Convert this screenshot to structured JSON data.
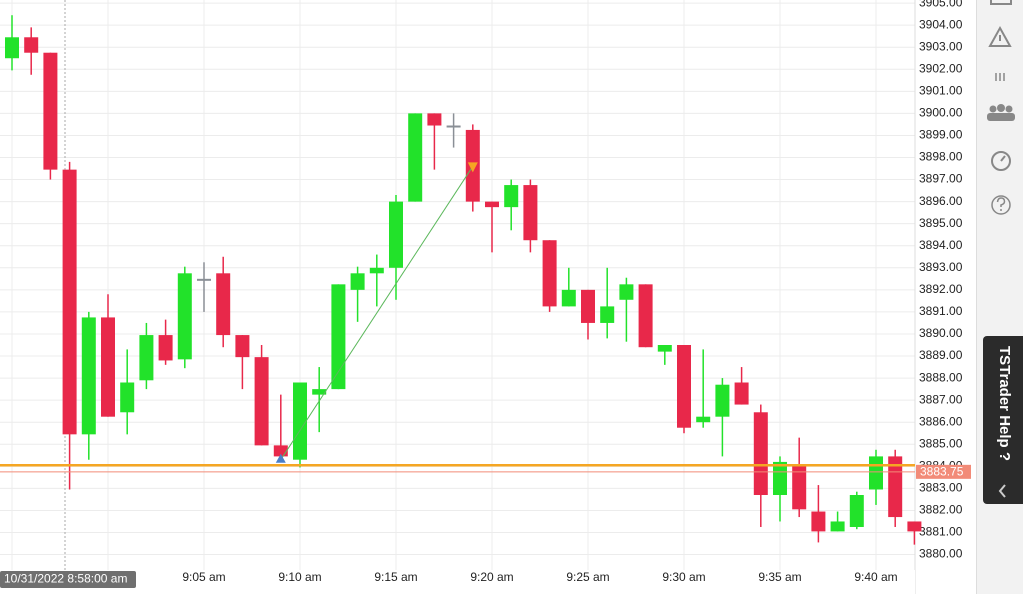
{
  "chart_data": {
    "type": "candlestick",
    "categories": [
      null,
      null,
      null,
      null,
      null,
      null,
      null,
      null,
      null,
      null,
      "9:05 am",
      null,
      null,
      null,
      null,
      "9:10 am",
      null,
      null,
      null,
      null,
      "9:15 am",
      null,
      null,
      null,
      null,
      "9:20 am",
      null,
      null,
      null,
      null,
      "9:25 am",
      null,
      null,
      null,
      null,
      "9:30 am",
      null,
      null,
      null,
      null,
      "9:35 am",
      null,
      null,
      null,
      null,
      "9:40 am",
      null,
      null
    ],
    "open": [
      3902.5,
      3903.45,
      3902.75,
      3897.45,
      3885.45,
      3890.75,
      3886.45,
      3887.9,
      3889.95,
      3888.85,
      3892.5,
      3892.75,
      3889.95,
      3888.95,
      3884.95,
      3884.3,
      3887.25,
      3887.5,
      3892.0,
      3892.75,
      3893.0,
      3896.0,
      3900.0,
      3899.45,
      3899.25,
      3896.0,
      3895.75,
      3896.75,
      3894.25,
      3891.25,
      3892.0,
      3890.5,
      3891.55,
      3892.25,
      3889.2,
      3889.5,
      3886.0,
      3886.25,
      3887.8,
      3886.45,
      3882.7,
      3884.1,
      3881.95,
      3881.05,
      3881.25,
      3882.95,
      3884.45,
      3881.5
    ],
    "high": [
      3904.45,
      3903.9,
      3902.75,
      3897.8,
      3891.0,
      3891.8,
      3889.3,
      3890.5,
      3890.65,
      3893.05,
      3893.25,
      3893.5,
      3889.95,
      3889.5,
      3887.25,
      3887.8,
      3888.5,
      3892.25,
      3893.05,
      3893.6,
      3896.3,
      3900.0,
      3900.0,
      3900.0,
      3899.5,
      3896.0,
      3897.0,
      3897.0,
      3894.25,
      3893.0,
      3892.0,
      3893.0,
      3892.55,
      3892.25,
      3889.5,
      3889.5,
      3889.3,
      3888.0,
      3888.5,
      3886.8,
      3884.45,
      3885.3,
      3883.15,
      3881.95,
      3882.85,
      3884.75,
      3884.75,
      3881.5
    ],
    "low": [
      3901.95,
      3901.75,
      3897.0,
      3882.95,
      3884.3,
      3886.25,
      3885.45,
      3887.5,
      3888.6,
      3888.45,
      3891.0,
      3889.4,
      3887.5,
      3884.95,
      3884.3,
      3883.95,
      3885.55,
      3887.5,
      3890.55,
      3891.25,
      3891.55,
      3896.0,
      3897.45,
      3898.45,
      3895.55,
      3893.7,
      3894.7,
      3893.7,
      3891.0,
      3891.25,
      3889.75,
      3889.8,
      3889.65,
      3889.4,
      3888.6,
      3885.5,
      3885.75,
      3884.45,
      3886.8,
      3881.25,
      3881.5,
      3881.7,
      3880.55,
      3881.05,
      3881.15,
      3882.25,
      3881.25,
      3880.45
    ],
    "close": [
      3903.45,
      3902.75,
      3897.45,
      3885.45,
      3890.75,
      3886.25,
      3887.8,
      3889.95,
      3888.8,
      3892.75,
      3892.5,
      3889.95,
      3888.95,
      3884.95,
      3884.45,
      3887.8,
      3887.5,
      3892.25,
      3892.75,
      3893.0,
      3896.0,
      3900.0,
      3899.45,
      3899.45,
      3896.0,
      3895.75,
      3896.75,
      3894.25,
      3891.25,
      3892.0,
      3890.5,
      3891.25,
      3892.25,
      3889.4,
      3889.5,
      3885.75,
      3886.25,
      3887.7,
      3886.8,
      3882.7,
      3884.2,
      3882.05,
      3881.05,
      3881.5,
      3882.7,
      3884.45,
      3881.7,
      3881.05
    ],
    "up_color": "#22e22a",
    "down_color": "#e8284a",
    "doji_color": "#8a8f96",
    "ylim": [
      3879.3,
      3905.14
    ],
    "yticks": [
      {
        "value": 3880,
        "label": "3880.00"
      },
      {
        "value": 3881,
        "label": "3881.00"
      },
      {
        "value": 3882,
        "label": "3882.00"
      },
      {
        "value": 3883,
        "label": "3883.00"
      },
      {
        "value": 3884,
        "label": "3884.00"
      },
      {
        "value": 3885,
        "label": "3885.00"
      },
      {
        "value": 3886,
        "label": "3886.00"
      },
      {
        "value": 3887,
        "label": "3887.00"
      },
      {
        "value": 3888,
        "label": "3888.00"
      },
      {
        "value": 3889,
        "label": "3889.00"
      },
      {
        "value": 3890,
        "label": "3890.00"
      },
      {
        "value": 3891,
        "label": "3891.00"
      },
      {
        "value": 3892,
        "label": "3892.00"
      },
      {
        "value": 3893,
        "label": "3893.00"
      },
      {
        "value": 3894,
        "label": "3894.00"
      },
      {
        "value": 3895,
        "label": "3895.00"
      },
      {
        "value": 3896,
        "label": "3896.00"
      },
      {
        "value": 3897,
        "label": "3897.00"
      },
      {
        "value": 3898,
        "label": "3898.00"
      },
      {
        "value": 3899,
        "label": "3899.00"
      },
      {
        "value": 3900,
        "label": "3900.00"
      },
      {
        "value": 3901,
        "label": "3901.00"
      },
      {
        "value": 3902,
        "label": "3902.00"
      },
      {
        "value": 3903,
        "label": "3903.00"
      },
      {
        "value": 3904,
        "label": "3904.00"
      },
      {
        "value": 3905,
        "label": "3905.00"
      }
    ],
    "grid": true,
    "price_line": {
      "value": 3884.05,
      "color": "#f5a623"
    },
    "last_price": {
      "value": 3883.75,
      "color": "#f28b78"
    },
    "trendline": {
      "start": 3884.3,
      "end": 3897.6,
      "color": "#5cb85c"
    },
    "crosshair": {
      "label": "10/31/2022 8:58:00 am"
    }
  },
  "sidebar": {
    "help_tab": "TSTrader Help ?"
  }
}
